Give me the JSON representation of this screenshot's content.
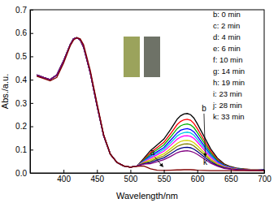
{
  "chart_data": {
    "type": "line",
    "xlabel": "Wavelength/nm",
    "ylabel": "Abs./a.u.",
    "xlim": [
      350,
      700
    ],
    "ylim": [
      0,
      0.7
    ],
    "xticks": [
      400,
      450,
      500,
      550,
      600,
      650,
      700
    ],
    "yticks": [
      {
        "value": 0,
        "label": "0.0"
      },
      {
        "value": 0.1,
        "label": "0.1"
      },
      {
        "value": 0.2,
        "label": "0.2"
      },
      {
        "value": 0.3,
        "label": "0.3"
      },
      {
        "value": 0.4,
        "label": "0.4"
      },
      {
        "value": 0.5,
        "label": "0.5"
      },
      {
        "value": 0.6,
        "label": "0.6"
      },
      {
        "value": 0.7,
        "label": "0.7"
      }
    ],
    "x": [
      360,
      370,
      380,
      390,
      400,
      410,
      415,
      420,
      425,
      430,
      440,
      450,
      460,
      470,
      480,
      490,
      500,
      510,
      520,
      530,
      540,
      550,
      560,
      570,
      575,
      580,
      585,
      590,
      595,
      600,
      610,
      620,
      630,
      640,
      650,
      660,
      670,
      680,
      690,
      700
    ],
    "series": [
      {
        "name": "b: 0 min",
        "color": "#000000",
        "values": [
          0.42,
          0.41,
          0.4,
          0.42,
          0.48,
          0.55,
          0.575,
          0.58,
          0.57,
          0.54,
          0.43,
          0.29,
          0.16,
          0.08,
          0.045,
          0.03,
          0.025,
          0.03,
          0.062,
          0.096,
          0.12,
          0.145,
          0.186,
          0.231,
          0.245,
          0.253,
          0.255,
          0.25,
          0.235,
          0.211,
          0.157,
          0.103,
          0.064,
          0.039,
          0.027,
          0.02,
          0.017,
          0.015,
          0.015,
          0.014
        ]
      },
      {
        "name": "c: 2 min",
        "color": "#ff0000",
        "values": [
          0.42,
          0.41,
          0.4,
          0.42,
          0.48,
          0.55,
          0.575,
          0.58,
          0.57,
          0.54,
          0.43,
          0.29,
          0.16,
          0.08,
          0.045,
          0.03,
          0.025,
          0.03,
          0.058,
          0.087,
          0.109,
          0.131,
          0.168,
          0.208,
          0.221,
          0.228,
          0.23,
          0.226,
          0.212,
          0.19,
          0.142,
          0.094,
          0.058,
          0.036,
          0.025,
          0.019,
          0.017,
          0.014,
          0.014,
          0.013
        ]
      },
      {
        "name": "d: 4 min",
        "color": "#00b000",
        "values": [
          0.42,
          0.41,
          0.4,
          0.42,
          0.48,
          0.55,
          0.575,
          0.58,
          0.57,
          0.54,
          0.43,
          0.29,
          0.16,
          0.08,
          0.045,
          0.03,
          0.025,
          0.03,
          0.055,
          0.08,
          0.1,
          0.12,
          0.154,
          0.19,
          0.202,
          0.208,
          0.21,
          0.206,
          0.194,
          0.174,
          0.13,
          0.086,
          0.054,
          0.034,
          0.024,
          0.018,
          0.016,
          0.014,
          0.014,
          0.013
        ]
      },
      {
        "name": "e: 6 min",
        "color": "#0000ff",
        "values": [
          0.42,
          0.41,
          0.4,
          0.42,
          0.48,
          0.55,
          0.575,
          0.58,
          0.57,
          0.54,
          0.43,
          0.29,
          0.16,
          0.08,
          0.045,
          0.03,
          0.025,
          0.03,
          0.052,
          0.073,
          0.091,
          0.109,
          0.14,
          0.172,
          0.183,
          0.188,
          0.19,
          0.186,
          0.176,
          0.158,
          0.118,
          0.078,
          0.05,
          0.032,
          0.023,
          0.017,
          0.015,
          0.014,
          0.014,
          0.013
        ]
      },
      {
        "name": "f: 10 min",
        "color": "#00c8e6",
        "values": [
          0.42,
          0.41,
          0.4,
          0.42,
          0.48,
          0.55,
          0.575,
          0.58,
          0.57,
          0.54,
          0.43,
          0.29,
          0.16,
          0.08,
          0.045,
          0.03,
          0.025,
          0.03,
          0.05,
          0.068,
          0.084,
          0.101,
          0.129,
          0.159,
          0.168,
          0.173,
          0.175,
          0.172,
          0.162,
          0.145,
          0.109,
          0.073,
          0.046,
          0.03,
          0.022,
          0.017,
          0.015,
          0.013,
          0.013,
          0.012
        ]
      },
      {
        "name": "g: 14 min",
        "color": "#ff00ff",
        "values": [
          0.42,
          0.41,
          0.4,
          0.42,
          0.48,
          0.55,
          0.575,
          0.58,
          0.57,
          0.54,
          0.43,
          0.29,
          0.16,
          0.08,
          0.045,
          0.03,
          0.025,
          0.03,
          0.048,
          0.063,
          0.078,
          0.093,
          0.118,
          0.145,
          0.154,
          0.159,
          0.16,
          0.157,
          0.148,
          0.133,
          0.1,
          0.067,
          0.043,
          0.028,
          0.021,
          0.016,
          0.015,
          0.013,
          0.013,
          0.012
        ]
      },
      {
        "name": "h: 19 min",
        "color": "#d2d200",
        "values": [
          0.42,
          0.41,
          0.4,
          0.42,
          0.48,
          0.55,
          0.575,
          0.58,
          0.57,
          0.54,
          0.43,
          0.29,
          0.16,
          0.08,
          0.045,
          0.03,
          0.025,
          0.03,
          0.045,
          0.056,
          0.069,
          0.082,
          0.104,
          0.127,
          0.135,
          0.139,
          0.14,
          0.137,
          0.13,
          0.117,
          0.088,
          0.059,
          0.039,
          0.026,
          0.019,
          0.015,
          0.014,
          0.013,
          0.013,
          0.012
        ]
      },
      {
        "name": "i: 23 min",
        "color": "#808000",
        "values": [
          0.42,
          0.41,
          0.4,
          0.42,
          0.48,
          0.55,
          0.575,
          0.58,
          0.57,
          0.54,
          0.43,
          0.29,
          0.16,
          0.08,
          0.045,
          0.03,
          0.025,
          0.03,
          0.042,
          0.05,
          0.062,
          0.073,
          0.093,
          0.114,
          0.12,
          0.124,
          0.125,
          0.123,
          0.116,
          0.104,
          0.079,
          0.054,
          0.035,
          0.024,
          0.018,
          0.015,
          0.013,
          0.012,
          0.012,
          0.012
        ]
      },
      {
        "name": "j: 28 min",
        "color": "#000080",
        "values": [
          0.42,
          0.41,
          0.4,
          0.42,
          0.48,
          0.55,
          0.575,
          0.58,
          0.57,
          0.54,
          0.43,
          0.29,
          0.16,
          0.08,
          0.045,
          0.03,
          0.025,
          0.03,
          0.04,
          0.045,
          0.055,
          0.065,
          0.082,
          0.1,
          0.106,
          0.109,
          0.11,
          0.108,
          0.102,
          0.092,
          0.07,
          0.048,
          0.032,
          0.022,
          0.017,
          0.014,
          0.013,
          0.012,
          0.012,
          0.012
        ]
      },
      {
        "name": "k: 33 min",
        "color": "#800080",
        "values": [
          0.42,
          0.41,
          0.4,
          0.42,
          0.48,
          0.55,
          0.575,
          0.58,
          0.57,
          0.54,
          0.43,
          0.29,
          0.16,
          0.08,
          0.045,
          0.03,
          0.025,
          0.03,
          0.038,
          0.04,
          0.048,
          0.057,
          0.071,
          0.087,
          0.092,
          0.094,
          0.095,
          0.093,
          0.088,
          0.08,
          0.061,
          0.042,
          0.029,
          0.02,
          0.016,
          0.013,
          0.013,
          0.012,
          0.012,
          0.011
        ]
      },
      {
        "color": "#800000",
        "values": [
          0.415,
          0.405,
          0.395,
          0.41,
          0.47,
          0.545,
          0.57,
          0.58,
          0.575,
          0.55,
          0.44,
          0.3,
          0.165,
          0.08,
          0.045,
          0.03,
          0.025,
          0.028,
          0.03,
          0.018,
          0.012,
          0.011,
          0.012,
          0.013,
          0.013,
          0.014,
          0.014,
          0.014,
          0.013,
          0.012,
          0.011,
          0.01,
          0.01,
          0.01,
          0.01,
          0.01,
          0.01,
          0.01,
          0.01,
          0.01
        ]
      }
    ],
    "annotations": [
      {
        "text": "a",
        "x": 533,
        "y": 0.075
      },
      {
        "text": "b",
        "x": 610,
        "y": 0.265
      },
      {
        "text": "k",
        "x": 612,
        "y": 0.035
      }
    ]
  }
}
